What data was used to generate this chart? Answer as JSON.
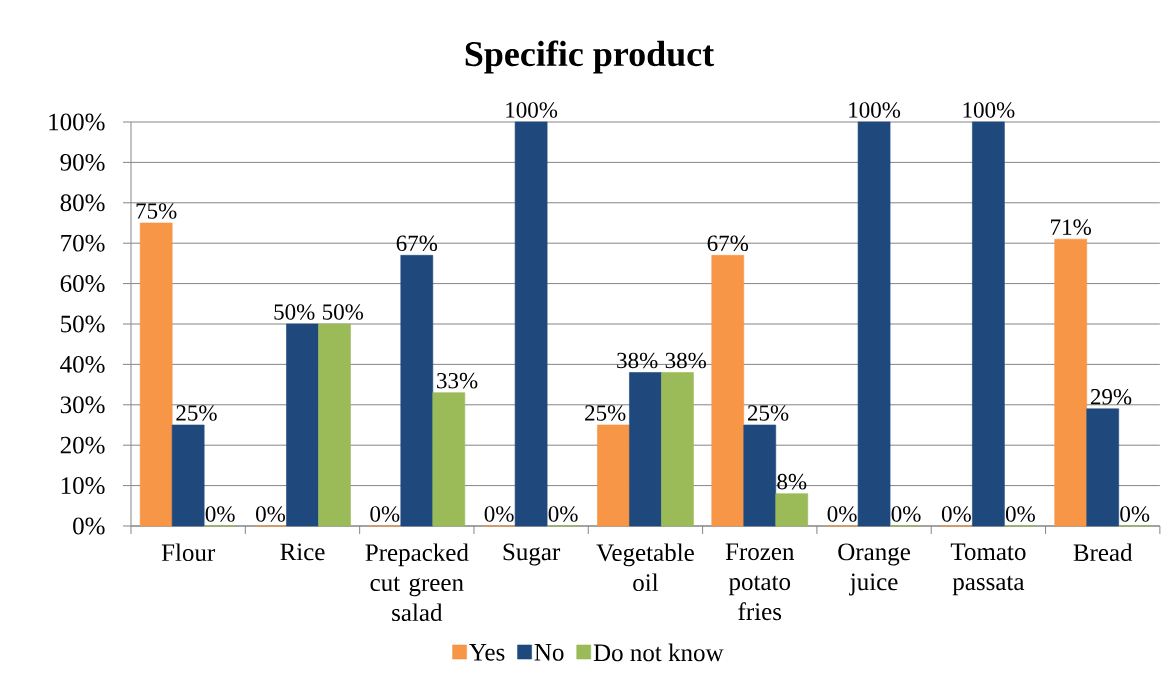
{
  "chart_data": {
    "type": "bar",
    "title": "Specific product",
    "categories": [
      "Flour",
      "Rice",
      "Prepacked cut green salad",
      "Sugar",
      "Vegetable oil",
      "Frozen potato fries",
      "Orange juice",
      "Tomato passata",
      "Bread"
    ],
    "series": [
      {
        "name": "Yes",
        "color": "#f79646",
        "values": [
          75,
          0,
          0,
          0,
          25,
          67,
          0,
          0,
          71
        ],
        "value_labels": [
          "75%",
          "0%",
          "0%",
          "0%",
          "25%",
          "67%",
          "0%",
          "0%",
          "71%"
        ]
      },
      {
        "name": "No",
        "color": "#1f497d",
        "values": [
          25,
          50,
          67,
          100,
          38,
          25,
          100,
          100,
          29
        ],
        "value_labels": [
          "25%",
          "50%",
          "67%",
          "100%",
          "38%",
          "25%",
          "100%",
          "100%",
          "29%"
        ]
      },
      {
        "name": "Do not know",
        "color": "#9bbb59",
        "values": [
          0,
          50,
          33,
          0,
          38,
          8,
          0,
          0,
          0
        ],
        "value_labels": [
          "0%",
          "50%",
          "33%",
          "0%",
          "38%",
          "8%",
          "0%",
          "0%",
          "0%"
        ]
      }
    ],
    "ylim": [
      0,
      100
    ],
    "yticks": [
      {
        "value": 0,
        "label": "0%"
      },
      {
        "value": 10,
        "label": "10%"
      },
      {
        "value": 20,
        "label": "20%"
      },
      {
        "value": 30,
        "label": "30%"
      },
      {
        "value": 40,
        "label": "40%"
      },
      {
        "value": 50,
        "label": "50%"
      },
      {
        "value": 60,
        "label": "60%"
      },
      {
        "value": 70,
        "label": "70%"
      },
      {
        "value": 80,
        "label": "80%"
      },
      {
        "value": 90,
        "label": "90%"
      },
      {
        "value": 100,
        "label": "100%"
      }
    ],
    "grid": "y",
    "legend": "bottom"
  }
}
